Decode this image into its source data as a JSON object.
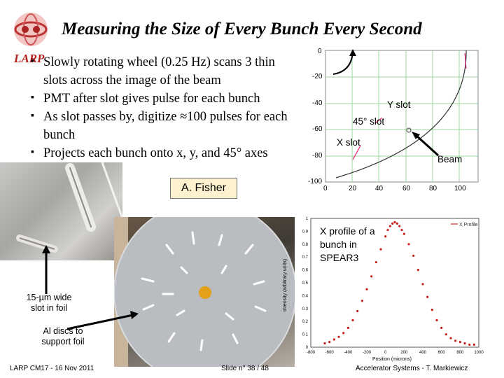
{
  "slide": {
    "title": "Measuring the Size of Every Bunch Every Second",
    "logo_text": "LARP",
    "bullets": [
      "Slowly rotating wheel (0.25 Hz) scans 3 thin slots across the image of the beam",
      "PMT after slot gives pulse for each bunch",
      "As slot passes by, digitize ≈100 pulses for each bunch",
      "Projects each bunch onto x, y, and 45° axes"
    ],
    "credit": "A. Fisher",
    "footer_left": "LARP CM17 - 16 Nov 2011",
    "footer_center": "Slide n° 38 / 48",
    "footer_right": "Accelerator Systems - T. Markiewicz"
  },
  "geometry_plot": {
    "labels": {
      "y_slot": "Y slot",
      "slot45": "45° slot",
      "x_slot": "X slot",
      "beam": "Beam"
    },
    "x_ticks": [
      "0",
      "20",
      "40",
      "60",
      "80",
      "100"
    ],
    "y_ticks": [
      "0",
      "-20",
      "-40",
      "-60",
      "-80",
      "-100"
    ]
  },
  "photo_labels": {
    "slot": "15-µm wide slot in foil",
    "discs": "Al discs to support foil"
  },
  "chart_data": {
    "type": "scatter",
    "title": "",
    "legend": "X Profile",
    "xlabel": "Position (microns)",
    "ylabel": "Intensity (arbitrary units)",
    "xlim": [
      -800,
      1000
    ],
    "ylim": [
      0,
      1
    ],
    "x_ticks": [
      "-800",
      "-600",
      "-400",
      "-200",
      "0",
      "200",
      "400",
      "600",
      "800",
      "1000"
    ],
    "y_ticks": [
      "0",
      "0.1",
      "0.2",
      "0.3",
      "0.4",
      "0.5",
      "0.6",
      "0.7",
      "0.8",
      "0.9",
      "1"
    ],
    "annotation": "X profile of a bunch in SPEAR3",
    "series": [
      {
        "name": "X Profile",
        "x": [
          -650,
          -600,
          -550,
          -500,
          -450,
          -400,
          -350,
          -300,
          -250,
          -200,
          -150,
          -100,
          -50,
          0,
          25,
          50,
          75,
          100,
          125,
          150,
          175,
          200,
          250,
          300,
          350,
          400,
          450,
          500,
          550,
          600,
          650,
          700,
          750,
          800,
          850,
          900,
          950
        ],
        "y": [
          0.03,
          0.04,
          0.06,
          0.08,
          0.11,
          0.15,
          0.21,
          0.28,
          0.36,
          0.45,
          0.55,
          0.66,
          0.76,
          0.86,
          0.91,
          0.94,
          0.96,
          0.97,
          0.96,
          0.94,
          0.91,
          0.88,
          0.8,
          0.71,
          0.6,
          0.49,
          0.39,
          0.29,
          0.21,
          0.15,
          0.1,
          0.07,
          0.05,
          0.04,
          0.03,
          0.02,
          0.02
        ]
      }
    ]
  }
}
